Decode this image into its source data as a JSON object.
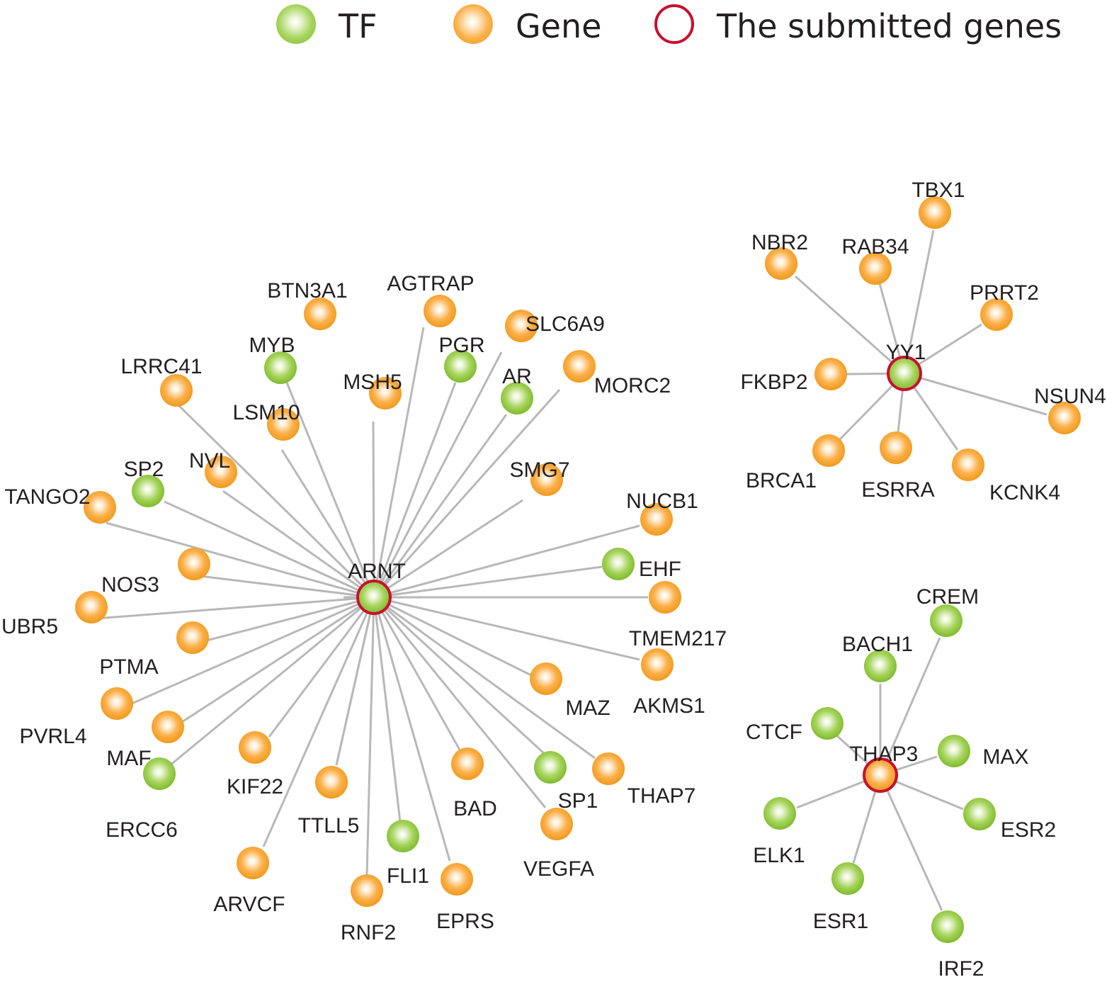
{
  "legend": {
    "tf": "TF",
    "gene": "Gene",
    "submitted": "The submitted genes"
  },
  "colors": {
    "tf": "#8dc63f",
    "gene": "#f7a325",
    "submitted_ring": "#c8102e",
    "edge": "#b8b8b8"
  },
  "networks": [
    {
      "hub": {
        "label": "ARNT",
        "type": "tf",
        "submitted": true
      },
      "targets": [
        {
          "label": "BTN3A1",
          "type": "gene"
        },
        {
          "label": "AGTRAP",
          "type": "gene"
        },
        {
          "label": "SLC6A9",
          "type": "gene"
        },
        {
          "label": "MYB",
          "type": "tf"
        },
        {
          "label": "PGR",
          "type": "tf"
        },
        {
          "label": "MSH5",
          "type": "gene"
        },
        {
          "label": "MORC2",
          "type": "gene"
        },
        {
          "label": "AR",
          "type": "tf"
        },
        {
          "label": "LRRC41",
          "type": "gene"
        },
        {
          "label": "LSM10",
          "type": "gene"
        },
        {
          "label": "SP2",
          "type": "tf"
        },
        {
          "label": "NVL",
          "type": "gene"
        },
        {
          "label": "SMG7",
          "type": "gene"
        },
        {
          "label": "TANGO2",
          "type": "gene"
        },
        {
          "label": "NUCB1",
          "type": "gene"
        },
        {
          "label": "",
          "type": "gene"
        },
        {
          "label": "EHF",
          "type": "tf"
        },
        {
          "label": "NOS3",
          "type": "gene"
        },
        {
          "label": "UBR5",
          "type": "gene"
        },
        {
          "label": "TMEM217",
          "type": "gene"
        },
        {
          "label": "PTMA",
          "type": "gene"
        },
        {
          "label": "AKMS1",
          "type": "gene"
        },
        {
          "label": "MAZ",
          "type": "gene"
        },
        {
          "label": "PVRL4",
          "type": "gene"
        },
        {
          "label": "MAF",
          "type": "tf"
        },
        {
          "label": "KIF22",
          "type": "gene"
        },
        {
          "label": "ERCC6",
          "type": "gene"
        },
        {
          "label": "BAD",
          "type": "gene"
        },
        {
          "label": "SP1",
          "type": "tf"
        },
        {
          "label": "THAP7",
          "type": "gene"
        },
        {
          "label": "TTLL5",
          "type": "gene"
        },
        {
          "label": "VEGFA",
          "type": "gene"
        },
        {
          "label": "FLI1",
          "type": "tf"
        },
        {
          "label": "ARVCF",
          "type": "gene"
        },
        {
          "label": "RNF2",
          "type": "gene"
        },
        {
          "label": "EPRS",
          "type": "gene"
        }
      ]
    },
    {
      "hub": {
        "label": "YY1",
        "type": "tf",
        "submitted": true
      },
      "targets": [
        {
          "label": "TBX1",
          "type": "gene"
        },
        {
          "label": "NBR2",
          "type": "gene"
        },
        {
          "label": "RAB34",
          "type": "gene"
        },
        {
          "label": "PRRT2",
          "type": "gene"
        },
        {
          "label": "FKBP2",
          "type": "gene"
        },
        {
          "label": "NSUN4",
          "type": "gene"
        },
        {
          "label": "BRCA1",
          "type": "gene"
        },
        {
          "label": "ESRRA",
          "type": "gene"
        },
        {
          "label": "KCNK4",
          "type": "gene"
        }
      ]
    },
    {
      "hub": {
        "label": "THAP3",
        "type": "gene",
        "submitted": true
      },
      "targets": [
        {
          "label": "CREM",
          "type": "tf"
        },
        {
          "label": "BACH1",
          "type": "tf"
        },
        {
          "label": "CTCF",
          "type": "tf"
        },
        {
          "label": "MAX",
          "type": "tf"
        },
        {
          "label": "ELK1",
          "type": "tf"
        },
        {
          "label": "ESR2",
          "type": "tf"
        },
        {
          "label": "ESR1",
          "type": "tf"
        },
        {
          "label": "IRF2",
          "type": "tf"
        }
      ]
    }
  ]
}
